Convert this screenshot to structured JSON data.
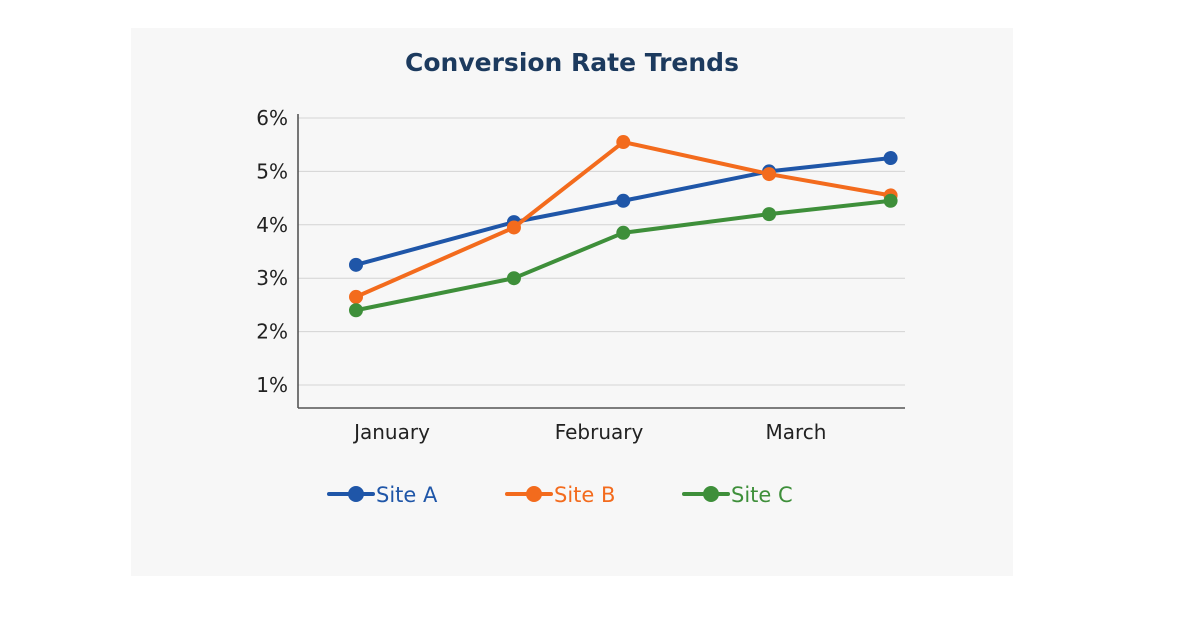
{
  "chart_data": {
    "type": "line",
    "title": "Conversion Rate Trends",
    "xlabel": "",
    "ylabel": "",
    "categories": [
      "January",
      "February",
      "March"
    ],
    "ylim": [
      1,
      6
    ],
    "yticks": [
      "1%",
      "2%",
      "3%",
      "4%",
      "5%",
      "6%"
    ],
    "grid": true,
    "legend_position": "bottom",
    "series": [
      {
        "name": "Site A",
        "color": "#1f56a8",
        "points": [
          {
            "x": 1.0,
            "y": 3.25
          },
          {
            "x": 1.65,
            "y": 4.05
          },
          {
            "x": 2.1,
            "y": 4.45
          },
          {
            "x": 2.7,
            "y": 5.0
          },
          {
            "x": 3.2,
            "y": 5.25
          }
        ]
      },
      {
        "name": "Site B",
        "color": "#f36b1d",
        "points": [
          {
            "x": 1.0,
            "y": 2.65
          },
          {
            "x": 1.65,
            "y": 3.95
          },
          {
            "x": 2.1,
            "y": 5.55
          },
          {
            "x": 2.7,
            "y": 4.95
          },
          {
            "x": 3.2,
            "y": 4.55
          }
        ]
      },
      {
        "name": "Site C",
        "color": "#3e8f3a",
        "points": [
          {
            "x": 1.0,
            "y": 2.4
          },
          {
            "x": 1.65,
            "y": 3.0
          },
          {
            "x": 2.1,
            "y": 3.85
          },
          {
            "x": 2.7,
            "y": 4.2
          },
          {
            "x": 3.2,
            "y": 4.45
          }
        ]
      }
    ]
  }
}
